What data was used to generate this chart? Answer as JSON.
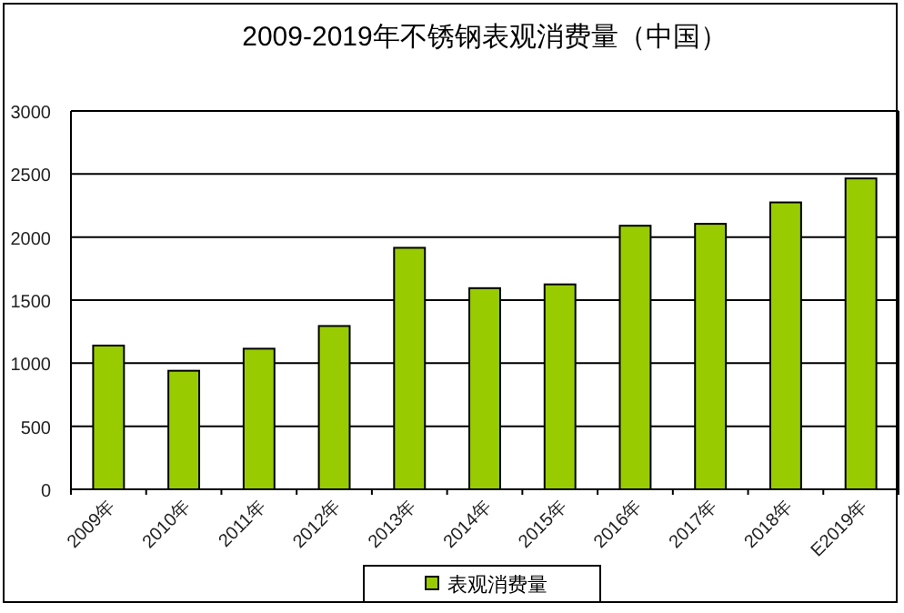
{
  "chart_data": {
    "type": "bar",
    "title": "2009-2019年不锈钢表观消费量（中国）",
    "categories": [
      "2009年",
      "2010年",
      "2011年",
      "2012年",
      "2013年",
      "2014年",
      "2015年",
      "2016年",
      "2017年",
      "2018年",
      "E2019年"
    ],
    "series": [
      {
        "name": "表观消费量",
        "color": "#99cc00",
        "values": [
          1140,
          940,
          1115,
          1295,
          1915,
          1595,
          1625,
          2090,
          2105,
          2275,
          2465
        ]
      }
    ],
    "ylim": [
      0,
      3000
    ],
    "yticks": [
      0,
      500,
      1000,
      1500,
      2000,
      2500,
      3000
    ],
    "grid": "y",
    "legend": "bottom"
  }
}
